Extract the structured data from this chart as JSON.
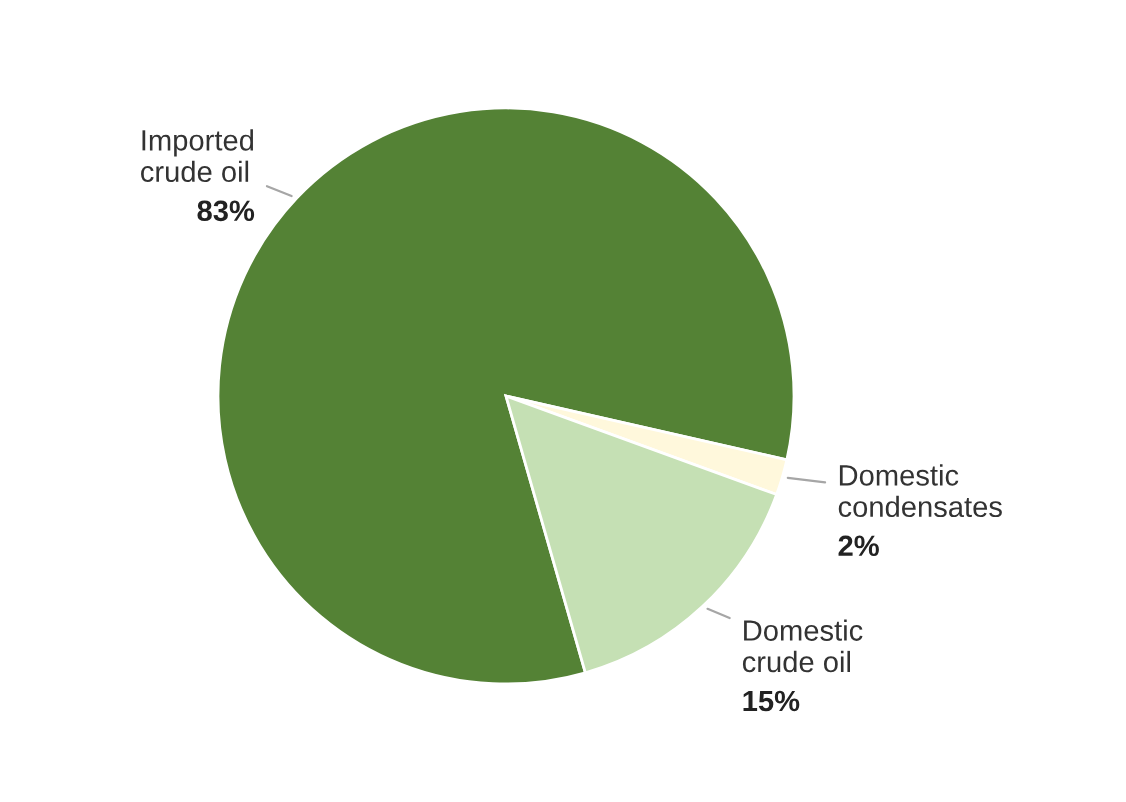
{
  "chart_data": {
    "type": "pie",
    "categories": [
      "Imported crude oil",
      "Domestic condensates",
      "Domestic crude oil"
    ],
    "values": [
      83,
      2,
      15
    ],
    "colors": [
      "#548235",
      "#fff8dc",
      "#c5e0b4"
    ],
    "value_labels": [
      "83%",
      "2%",
      "15%"
    ]
  }
}
